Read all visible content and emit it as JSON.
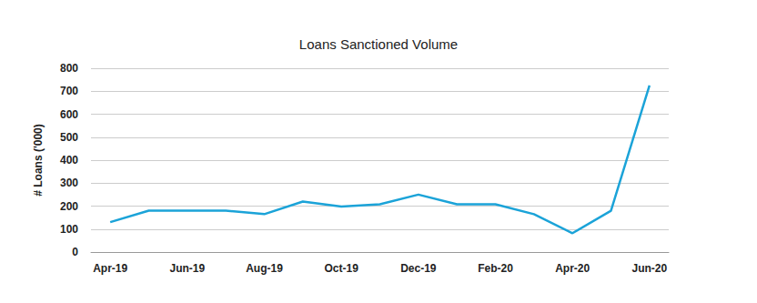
{
  "chart_data": {
    "type": "line",
    "title": "Loans Sanctioned Volume",
    "y_label": "# Loans ('000)",
    "categories": [
      "Apr-19",
      null,
      "Jun-19",
      null,
      "Aug-19",
      null,
      "Oct-19",
      null,
      "Dec-19",
      null,
      "Feb-20",
      null,
      "Apr-20",
      null,
      "Jun-20"
    ],
    "values": [
      130,
      180,
      180,
      180,
      165,
      220,
      198,
      208,
      250,
      208,
      208,
      165,
      82,
      180,
      725
    ],
    "color": "#1ba3d8",
    "ylim": [
      0,
      800
    ],
    "yticks": [
      0,
      100,
      200,
      300,
      400,
      500,
      600,
      700,
      800
    ],
    "grid": true
  }
}
